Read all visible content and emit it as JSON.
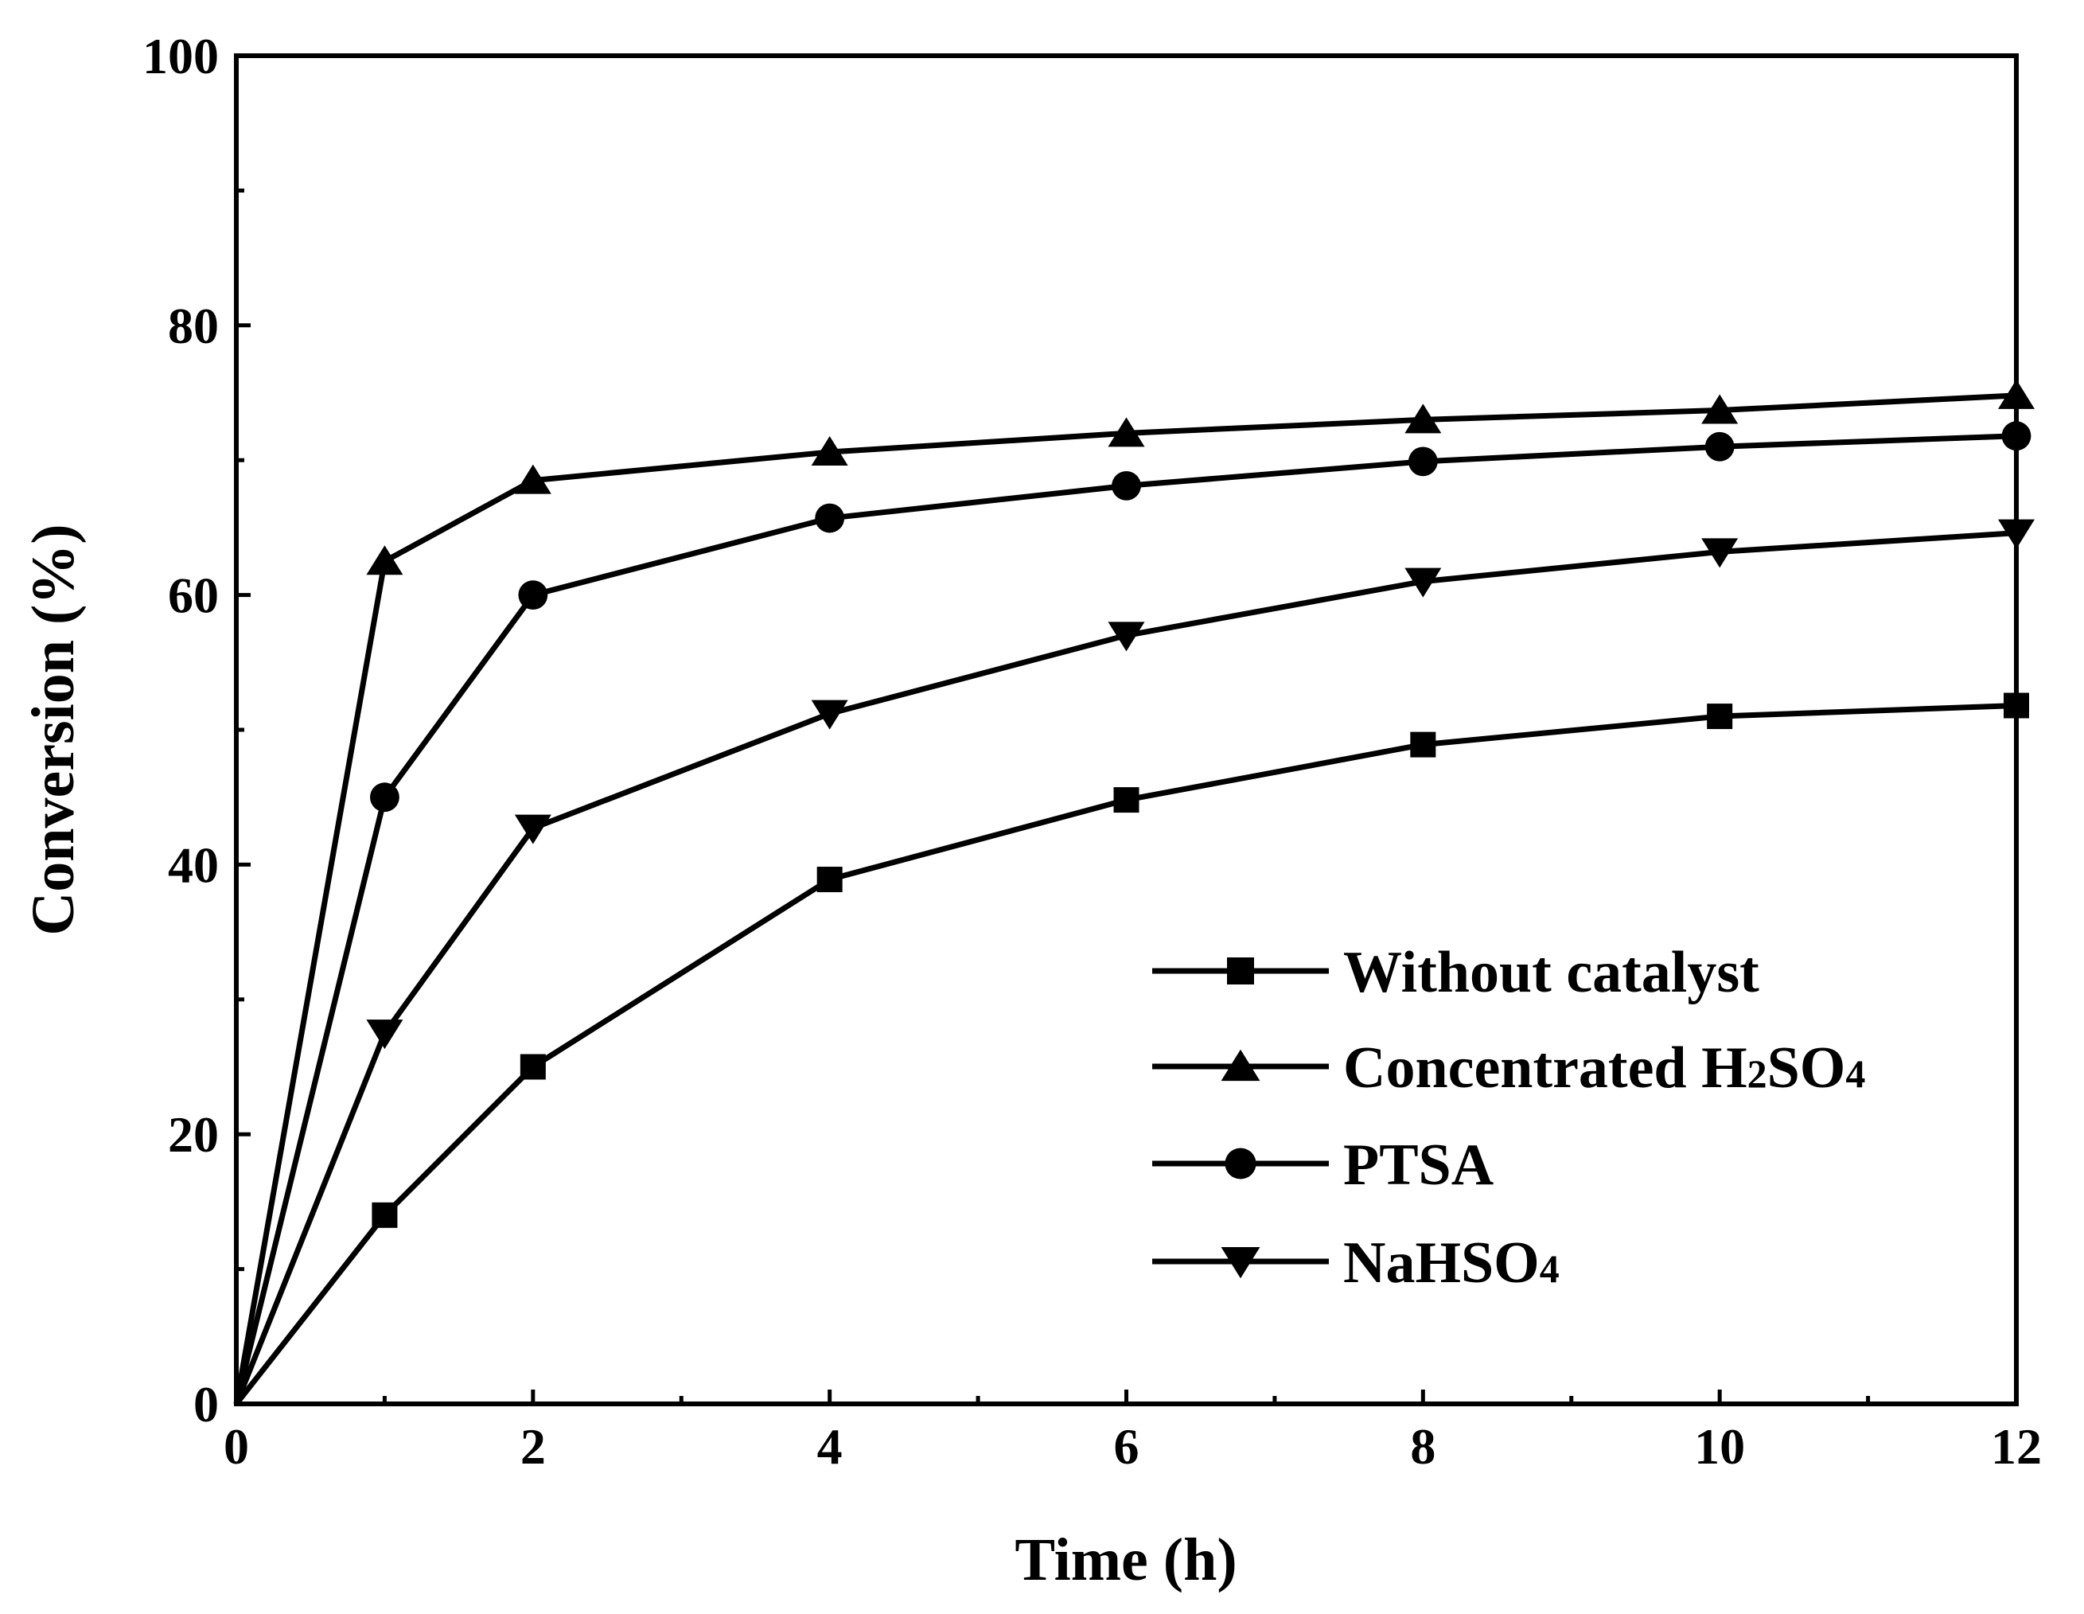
{
  "chart_data": {
    "type": "line",
    "title": "",
    "xlabel": "Time (h)",
    "ylabel": "Conversion (%)",
    "xlim": [
      0,
      12
    ],
    "ylim": [
      0,
      100
    ],
    "xticks": [
      0,
      2,
      4,
      6,
      8,
      10,
      12
    ],
    "xticks_minor": [
      1,
      3,
      5,
      7,
      9,
      11
    ],
    "yticks": [
      0,
      20,
      40,
      60,
      80,
      100
    ],
    "yticks_minor": [
      10,
      30,
      50,
      70,
      90
    ],
    "grid": false,
    "legend_position": "bottom-right",
    "colors": {
      "line": "#000000",
      "background": "#ffffff"
    },
    "series": [
      {
        "name": "Without catalyst",
        "marker": "square",
        "x": [
          0,
          1,
          2,
          4,
          6,
          8,
          10,
          12
        ],
        "y": [
          0,
          14,
          25,
          38.9,
          44.8,
          48.9,
          51,
          51.8
        ]
      },
      {
        "name": "Concentrated H2SO4",
        "label_main": "Concentrated H",
        "label_sub1": "2",
        "label_mid": "SO",
        "label_sub2": "4",
        "marker": "triangle-up",
        "x": [
          0,
          1,
          2,
          4,
          6,
          8,
          10,
          12
        ],
        "y": [
          0,
          62.5,
          68.5,
          70.6,
          72,
          73,
          73.7,
          74.8
        ]
      },
      {
        "name": "PTSA",
        "marker": "circle",
        "x": [
          0,
          1,
          2,
          4,
          6,
          8,
          10,
          12
        ],
        "y": [
          0,
          45,
          60,
          65.7,
          68.1,
          69.9,
          71,
          71.8
        ]
      },
      {
        "name": "NaHSO4",
        "label_main": "NaHSO",
        "label_sub2": "4",
        "marker": "triangle-down",
        "x": [
          0,
          1,
          2,
          4,
          6,
          8,
          10,
          12
        ],
        "y": [
          0,
          27.5,
          42.7,
          51.2,
          57,
          61,
          63.2,
          64.6
        ]
      }
    ]
  }
}
